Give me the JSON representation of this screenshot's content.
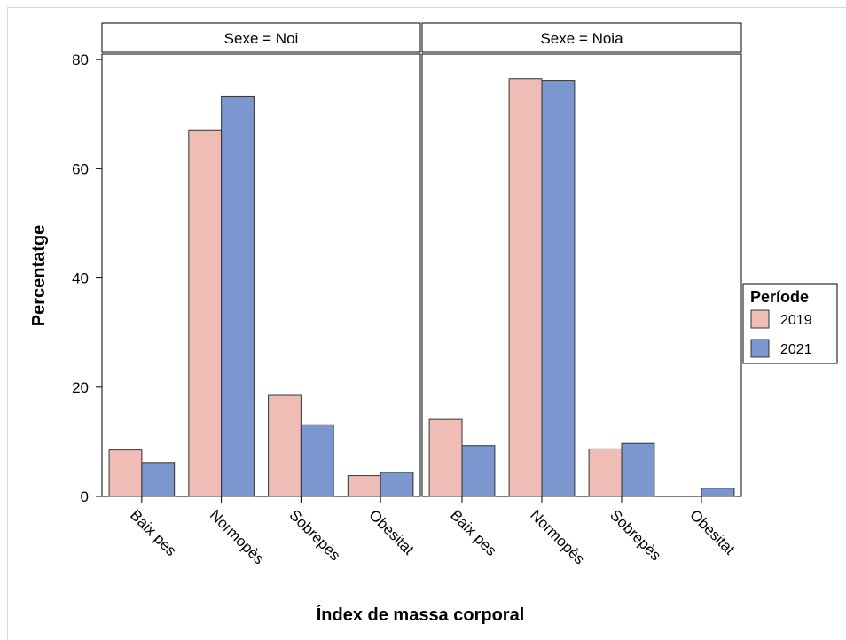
{
  "colors": {
    "2019": "#efbdb5",
    "2021": "#7b97cf"
  },
  "chart_data": {
    "type": "bar",
    "facet_variable": "Sexe",
    "facets": [
      {
        "strip_label": "Sexe = Noi",
        "series": [
          {
            "name": "2019",
            "values": [
              8.5,
              67.0,
              18.5,
              3.8
            ]
          },
          {
            "name": "2021",
            "values": [
              6.2,
              73.3,
              13.1,
              4.4
            ]
          }
        ]
      },
      {
        "strip_label": "Sexe = Noia",
        "series": [
          {
            "name": "2019",
            "values": [
              14.1,
              76.5,
              8.7,
              0.0
            ]
          },
          {
            "name": "2021",
            "values": [
              9.3,
              76.2,
              9.7,
              1.5
            ]
          }
        ]
      }
    ],
    "categories": [
      "Baix pes",
      "Normopès",
      "Sobrepès",
      "Obesitat"
    ],
    "xlabel": "Índex de massa corporal",
    "ylabel": "Percentatge",
    "ylim": [
      0,
      81
    ],
    "yticks": [
      0,
      20,
      40,
      60,
      80
    ],
    "legend": {
      "title": "Període",
      "entries": [
        "2019",
        "2021"
      ],
      "placement": "right"
    },
    "grid": false
  }
}
